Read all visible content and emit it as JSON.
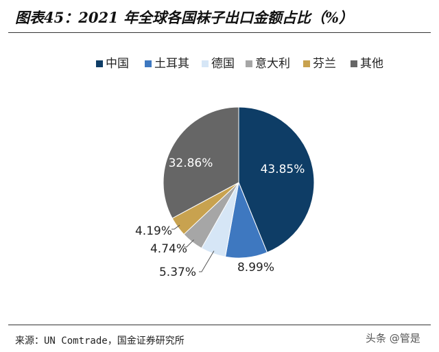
{
  "title": "图表45：2021 年全球各国袜子出口金额占比（%）",
  "source": "来源：UN Comtrade，国金证券研究所",
  "watermark": "头条 @管是",
  "chart_data": {
    "type": "pie",
    "title": "图表45：2021 年全球各国袜子出口金额占比（%）",
    "legend_position": "top",
    "categories": [
      "中国",
      "土耳其",
      "德国",
      "意大利",
      "芬兰",
      "其他"
    ],
    "values": [
      43.85,
      8.99,
      5.37,
      4.74,
      4.19,
      32.86
    ],
    "labels": [
      "43.85%",
      "8.99%",
      "5.37%",
      "4.74%",
      "4.19%",
      "32.86%"
    ],
    "colors": [
      "#0e3d66",
      "#3e78c0",
      "#d6e6f6",
      "#a6a6a6",
      "#c8a24f",
      "#666666"
    ]
  }
}
